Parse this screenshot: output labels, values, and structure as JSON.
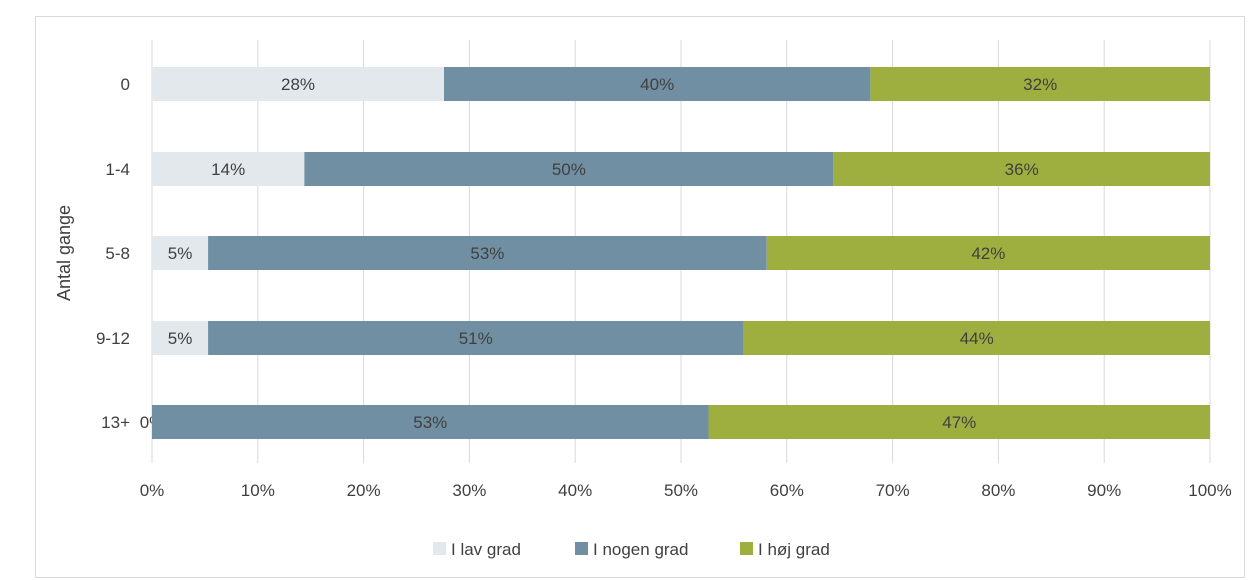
{
  "chart_data": {
    "type": "bar",
    "orientation": "horizontal",
    "stacked": true,
    "caption": "",
    "ylabel": "Antal gange",
    "xlabel": "",
    "categories": [
      "0",
      "1-4",
      "5-8",
      "9-12",
      "13+"
    ],
    "xlim": [
      0,
      100
    ],
    "x_ticks": [
      "0%",
      "10%",
      "20%",
      "30%",
      "40%",
      "50%",
      "60%",
      "70%",
      "80%",
      "90%",
      "100%"
    ],
    "series": [
      {
        "name": "I lav grad",
        "color": "#e3e8ec",
        "values": [
          27.6,
          14.4,
          5.3,
          5.3,
          0
        ],
        "labels": [
          "28%",
          "14%",
          "5%",
          "5%",
          "0%"
        ]
      },
      {
        "name": "I nogen grad",
        "color": "#718fa3",
        "values": [
          40.3,
          50.0,
          52.8,
          50.6,
          52.6
        ],
        "labels": [
          "40%",
          "50%",
          "53%",
          "51%",
          "53%"
        ]
      },
      {
        "name": "I høj grad",
        "color": "#9faf3f",
        "values": [
          32.1,
          35.6,
          41.9,
          44.1,
          47.4
        ],
        "labels": [
          "32%",
          "36%",
          "42%",
          "44%",
          "47%"
        ]
      }
    ],
    "grid": true,
    "legend_position": "bottom"
  }
}
